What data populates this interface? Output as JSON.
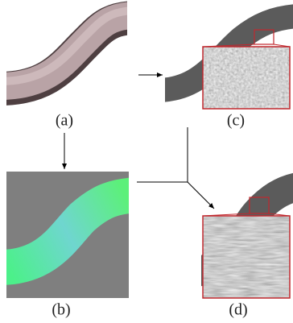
{
  "labels": {
    "a": "(a)",
    "b": "(b)",
    "c": "(c)",
    "d": "(d)"
  }
}
